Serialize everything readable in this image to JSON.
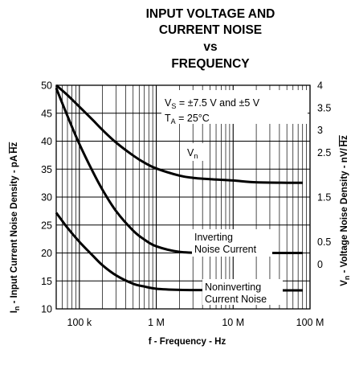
{
  "chart_data": {
    "type": "line",
    "title_lines": [
      "INPUT VOLTAGE AND",
      "CURRENT NOISE",
      "vs",
      "FREQUENCY"
    ],
    "xlabel": "f - Frequency - Hz",
    "x_scale": "log",
    "xlim": [
      50000,
      100000000
    ],
    "x_ticks": [
      {
        "value": 100000,
        "label": "100 k"
      },
      {
        "value": 1000000,
        "label": "1 M"
      },
      {
        "value": 10000000,
        "label": "10 M"
      },
      {
        "value": 100000000,
        "label": "100 M"
      }
    ],
    "y_left": {
      "label": "Input Current Noise Density - pA/√Hz",
      "label_prefix": "I",
      "label_sub": "n",
      "label_main": " -  Input Current Noise Density -  pA",
      "unit_root": "Hz",
      "lim": [
        10,
        50
      ],
      "ticks": [
        "10",
        "15",
        "20",
        "25",
        "30",
        "35",
        "40",
        "45",
        "50"
      ]
    },
    "y_right": {
      "label": "Voltage Noise Density - nV/√Hz",
      "label_prefix": "V",
      "label_sub": "n",
      "label_main": " -  Voltage Noise Density -  nV/",
      "unit_root": "Hz",
      "lim": [
        -1,
        4
      ],
      "ticks": [
        "0",
        "0.5",
        "1.5",
        "2.5",
        "3",
        "3.5",
        "4"
      ],
      "tick_values": [
        0,
        0.5,
        1.5,
        2.5,
        3,
        3.5,
        4
      ]
    },
    "grid": true,
    "series": [
      {
        "name": "Vn",
        "label_lines": [
          "V",
          "n"
        ],
        "axis": "right",
        "x": [
          50000,
          70000,
          100000,
          150000,
          200000,
          300000,
          500000,
          700000,
          1000000,
          2000000,
          3000000,
          5000000,
          10000000,
          20000000,
          50000000,
          80000000
        ],
        "values": [
          4.0,
          3.78,
          3.52,
          3.22,
          3.0,
          2.72,
          2.43,
          2.27,
          2.14,
          1.98,
          1.93,
          1.9,
          1.87,
          1.83,
          1.82,
          1.82
        ]
      },
      {
        "name": "Inverting Noise Current",
        "label_lines": [
          "Inverting",
          "Noise Current"
        ],
        "axis": "left",
        "x": [
          50000,
          70000,
          100000,
          150000,
          200000,
          300000,
          500000,
          700000,
          1000000,
          2000000,
          5000000,
          10000000,
          30000000,
          80000000
        ],
        "values": [
          49.5,
          44.5,
          39.5,
          34.5,
          31.3,
          27.5,
          24.0,
          22.4,
          21.2,
          20.2,
          20.0,
          20.0,
          20.0,
          20.0
        ]
      },
      {
        "name": "Noninverting Current Noise",
        "label_lines": [
          "Noninverting",
          "Current Noise"
        ],
        "axis": "left",
        "x": [
          50000,
          70000,
          100000,
          150000,
          200000,
          300000,
          500000,
          700000,
          1000000,
          2000000,
          5000000,
          10000000,
          30000000,
          80000000
        ],
        "values": [
          27.2,
          24.5,
          22.0,
          19.5,
          17.8,
          16.0,
          14.5,
          14.0,
          13.6,
          13.4,
          13.35,
          13.3,
          13.3,
          13.3
        ]
      }
    ],
    "conditions": {
      "line1_prefix": "V",
      "line1_sub": "S",
      "line1_rest": " = ±7.5 V and  ±5 V",
      "line2_prefix": "T",
      "line2_sub": "A",
      "line2_rest": " = 25°C"
    }
  }
}
